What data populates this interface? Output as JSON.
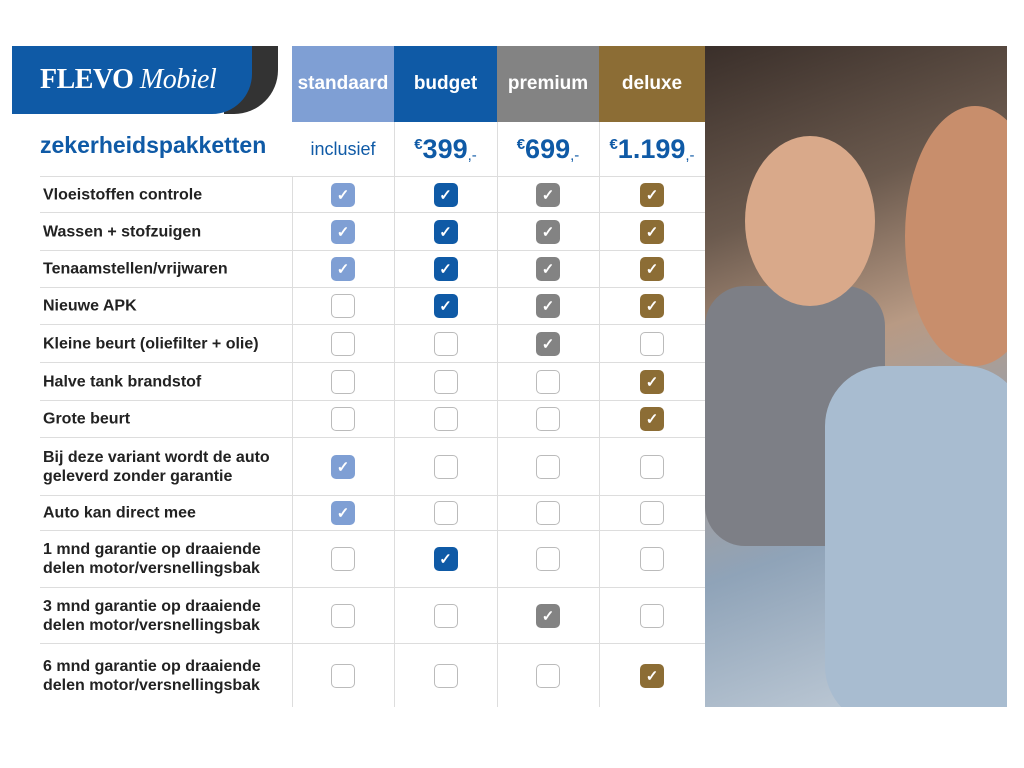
{
  "logo": {
    "brand": "FLEVO",
    "brand_italic": "Mobiel"
  },
  "title": "zekerheidspakketten",
  "colors": {
    "standaard": "#7f9fd4",
    "budget": "#0f5aa6",
    "premium": "#838383",
    "deluxe": "#8c6d35"
  },
  "packages": [
    {
      "name": "standaard",
      "price_text": "inclusief"
    },
    {
      "name": "budget",
      "currency": "€",
      "price": "399",
      "suffix": ",-"
    },
    {
      "name": "premium",
      "currency": "€",
      "price": "699",
      "suffix": ",-"
    },
    {
      "name": "deluxe",
      "currency": "€",
      "price": "1.199",
      "suffix": ",-"
    }
  ],
  "features": [
    {
      "label": "Vloeistoffen controle",
      "checks": [
        true,
        true,
        true,
        true
      ]
    },
    {
      "label": "Wassen + stofzuigen",
      "checks": [
        true,
        true,
        true,
        true
      ]
    },
    {
      "label": "Tenaamstellen/vrijwaren",
      "checks": [
        true,
        true,
        true,
        true
      ]
    },
    {
      "label": "Nieuwe APK",
      "checks": [
        false,
        true,
        true,
        true
      ]
    },
    {
      "label": "Kleine beurt (oliefilter + olie)",
      "checks": [
        false,
        false,
        true,
        false
      ]
    },
    {
      "label": "Halve tank brandstof",
      "checks": [
        false,
        false,
        false,
        true
      ]
    },
    {
      "label": "Grote beurt",
      "checks": [
        false,
        false,
        false,
        true
      ]
    },
    {
      "label": "Bij deze variant wordt de auto geleverd zonder garantie",
      "checks": [
        true,
        false,
        false,
        false
      ]
    },
    {
      "label": "Auto kan direct mee",
      "checks": [
        true,
        false,
        false,
        false
      ]
    },
    {
      "label": "1 mnd garantie op draaiende delen motor/versnellingsbak",
      "checks": [
        false,
        true,
        false,
        false
      ]
    },
    {
      "label": "3 mnd garantie op draaiende delen motor/versnellingsbak",
      "checks": [
        false,
        false,
        true,
        false
      ]
    },
    {
      "label": "6 mnd garantie op draaiende delen motor/versnellingsbak",
      "checks": [
        false,
        false,
        false,
        true
      ]
    }
  ],
  "check_icon": "check-mark"
}
